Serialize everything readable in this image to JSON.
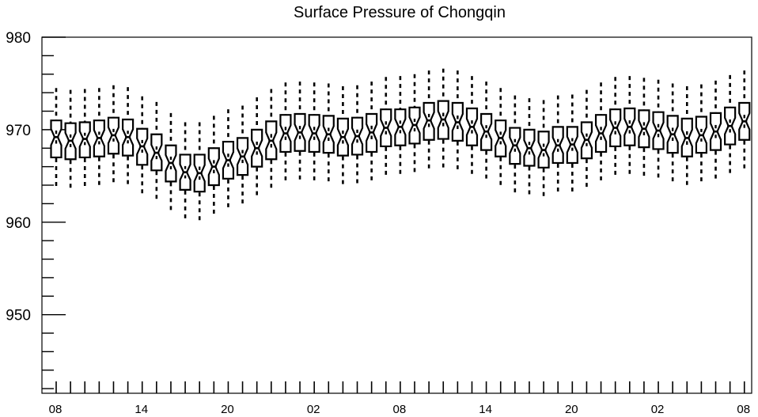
{
  "chart_data": {
    "type": "box",
    "title": "Surface Pressure of Chongqin",
    "xlabel": "",
    "ylabel": "",
    "ylim": [
      941.5,
      980
    ],
    "yticks": [
      950,
      960,
      970,
      980
    ],
    "xtick_labels": [
      "08",
      "14",
      "20",
      "02",
      "08",
      "14",
      "20",
      "02",
      "08"
    ],
    "xtick_positions": [
      0,
      6,
      12,
      18,
      24,
      30,
      36,
      42,
      48
    ],
    "box_style": "notched",
    "grid": false,
    "series": [
      {
        "x": 0,
        "whisker_low": 963.8,
        "q1": 967.0,
        "median": 969.2,
        "q3": 971.0,
        "whisker_high": 974.5
      },
      {
        "x": 1,
        "whisker_low": 963.5,
        "q1": 966.8,
        "median": 968.8,
        "q3": 970.7,
        "whisker_high": 974.3
      },
      {
        "x": 2,
        "whisker_low": 963.7,
        "q1": 967.0,
        "median": 969.0,
        "q3": 970.8,
        "whisker_high": 974.4
      },
      {
        "x": 3,
        "whisker_low": 963.8,
        "q1": 967.1,
        "median": 969.1,
        "q3": 971.0,
        "whisker_high": 974.5
      },
      {
        "x": 4,
        "whisker_low": 964.0,
        "q1": 967.4,
        "median": 969.4,
        "q3": 971.3,
        "whisker_high": 974.8
      },
      {
        "x": 5,
        "whisker_low": 963.9,
        "q1": 967.2,
        "median": 969.2,
        "q3": 971.1,
        "whisker_high": 974.6
      },
      {
        "x": 6,
        "whisker_low": 963.0,
        "q1": 966.2,
        "median": 968.2,
        "q3": 970.1,
        "whisker_high": 973.6
      },
      {
        "x": 7,
        "whisker_low": 962.3,
        "q1": 965.6,
        "median": 967.5,
        "q3": 969.5,
        "whisker_high": 973.0
      },
      {
        "x": 8,
        "whisker_low": 961.3,
        "q1": 964.4,
        "median": 966.4,
        "q3": 968.3,
        "whisker_high": 971.8
      },
      {
        "x": 9,
        "whisker_low": 960.4,
        "q1": 963.5,
        "median": 965.4,
        "q3": 967.3,
        "whisker_high": 970.8
      },
      {
        "x": 10,
        "whisker_low": 960.2,
        "q1": 963.3,
        "median": 965.3,
        "q3": 967.3,
        "whisker_high": 970.8
      },
      {
        "x": 11,
        "whisker_low": 960.9,
        "q1": 964.0,
        "median": 966.0,
        "q3": 968.0,
        "whisker_high": 971.5
      },
      {
        "x": 12,
        "whisker_low": 961.5,
        "q1": 964.7,
        "median": 966.7,
        "q3": 968.7,
        "whisker_high": 972.2
      },
      {
        "x": 13,
        "whisker_low": 961.9,
        "q1": 965.1,
        "median": 967.1,
        "q3": 969.1,
        "whisker_high": 972.6
      },
      {
        "x": 14,
        "whisker_low": 962.8,
        "q1": 966.0,
        "median": 968.0,
        "q3": 970.0,
        "whisker_high": 973.5
      },
      {
        "x": 15,
        "whisker_low": 963.6,
        "q1": 966.8,
        "median": 968.8,
        "q3": 970.9,
        "whisker_high": 974.4
      },
      {
        "x": 16,
        "whisker_low": 964.3,
        "q1": 967.6,
        "median": 969.6,
        "q3": 971.6,
        "whisker_high": 975.1
      },
      {
        "x": 17,
        "whisker_low": 964.5,
        "q1": 967.7,
        "median": 969.7,
        "q3": 971.7,
        "whisker_high": 975.2
      },
      {
        "x": 18,
        "whisker_low": 964.4,
        "q1": 967.6,
        "median": 969.6,
        "q3": 971.6,
        "whisker_high": 975.1
      },
      {
        "x": 19,
        "whisker_low": 964.3,
        "q1": 967.5,
        "median": 969.5,
        "q3": 971.5,
        "whisker_high": 975.0
      },
      {
        "x": 20,
        "whisker_low": 964.0,
        "q1": 967.2,
        "median": 969.2,
        "q3": 971.2,
        "whisker_high": 974.7
      },
      {
        "x": 21,
        "whisker_low": 964.1,
        "q1": 967.3,
        "median": 969.3,
        "q3": 971.3,
        "whisker_high": 974.8
      },
      {
        "x": 22,
        "whisker_low": 964.4,
        "q1": 967.6,
        "median": 969.7,
        "q3": 971.7,
        "whisker_high": 975.2
      },
      {
        "x": 23,
        "whisker_low": 964.9,
        "q1": 968.2,
        "median": 970.2,
        "q3": 972.2,
        "whisker_high": 975.7
      },
      {
        "x": 24,
        "whisker_low": 965.0,
        "q1": 968.3,
        "median": 970.3,
        "q3": 972.2,
        "whisker_high": 975.8
      },
      {
        "x": 25,
        "whisker_low": 965.3,
        "q1": 968.5,
        "median": 970.5,
        "q3": 972.4,
        "whisker_high": 976.0
      },
      {
        "x": 26,
        "whisker_low": 965.7,
        "q1": 968.9,
        "median": 971.0,
        "q3": 972.9,
        "whisker_high": 976.4
      },
      {
        "x": 27,
        "whisker_low": 965.9,
        "q1": 969.0,
        "median": 971.1,
        "q3": 973.1,
        "whisker_high": 976.6
      },
      {
        "x": 28,
        "whisker_low": 965.6,
        "q1": 968.8,
        "median": 970.8,
        "q3": 972.9,
        "whisker_high": 976.4
      },
      {
        "x": 29,
        "whisker_low": 965.1,
        "q1": 968.3,
        "median": 970.3,
        "q3": 972.3,
        "whisker_high": 975.8
      },
      {
        "x": 30,
        "whisker_low": 964.5,
        "q1": 967.8,
        "median": 969.8,
        "q3": 971.7,
        "whisker_high": 975.2
      },
      {
        "x": 31,
        "whisker_low": 963.9,
        "q1": 967.1,
        "median": 969.1,
        "q3": 971.0,
        "whisker_high": 974.5
      },
      {
        "x": 32,
        "whisker_low": 963.1,
        "q1": 966.3,
        "median": 968.3,
        "q3": 970.2,
        "whisker_high": 973.7
      },
      {
        "x": 33,
        "whisker_low": 962.9,
        "q1": 966.1,
        "median": 968.0,
        "q3": 970.0,
        "whisker_high": 973.4
      },
      {
        "x": 34,
        "whisker_low": 962.7,
        "q1": 965.9,
        "median": 967.8,
        "q3": 969.8,
        "whisker_high": 973.2
      },
      {
        "x": 35,
        "whisker_low": 963.1,
        "q1": 966.4,
        "median": 968.3,
        "q3": 970.3,
        "whisker_high": 973.7
      },
      {
        "x": 36,
        "whisker_low": 963.2,
        "q1": 966.4,
        "median": 968.4,
        "q3": 970.3,
        "whisker_high": 973.8
      },
      {
        "x": 37,
        "whisker_low": 963.7,
        "q1": 966.9,
        "median": 968.9,
        "q3": 970.8,
        "whisker_high": 974.3
      },
      {
        "x": 38,
        "whisker_low": 964.4,
        "q1": 967.6,
        "median": 969.6,
        "q3": 971.6,
        "whisker_high": 975.1
      },
      {
        "x": 39,
        "whisker_low": 964.9,
        "q1": 968.2,
        "median": 970.2,
        "q3": 972.2,
        "whisker_high": 975.7
      },
      {
        "x": 40,
        "whisker_low": 965.0,
        "q1": 968.3,
        "median": 970.3,
        "q3": 972.3,
        "whisker_high": 975.8
      },
      {
        "x": 41,
        "whisker_low": 964.9,
        "q1": 968.1,
        "median": 970.1,
        "q3": 972.1,
        "whisker_high": 975.6
      },
      {
        "x": 42,
        "whisker_low": 964.6,
        "q1": 967.9,
        "median": 969.9,
        "q3": 971.9,
        "whisker_high": 975.4
      },
      {
        "x": 43,
        "whisker_low": 964.3,
        "q1": 967.5,
        "median": 969.5,
        "q3": 971.5,
        "whisker_high": 975.0
      },
      {
        "x": 44,
        "whisker_low": 963.9,
        "q1": 967.1,
        "median": 969.1,
        "q3": 971.2,
        "whisker_high": 974.7
      },
      {
        "x": 45,
        "whisker_low": 964.2,
        "q1": 967.5,
        "median": 969.4,
        "q3": 971.4,
        "whisker_high": 974.9
      },
      {
        "x": 46,
        "whisker_low": 964.6,
        "q1": 967.8,
        "median": 969.8,
        "q3": 971.8,
        "whisker_high": 975.3
      },
      {
        "x": 47,
        "whisker_low": 965.2,
        "q1": 968.4,
        "median": 970.4,
        "q3": 972.4,
        "whisker_high": 975.9
      },
      {
        "x": 48,
        "whisker_low": 965.6,
        "q1": 968.9,
        "median": 970.9,
        "q3": 972.9,
        "whisker_high": 976.4
      }
    ]
  }
}
